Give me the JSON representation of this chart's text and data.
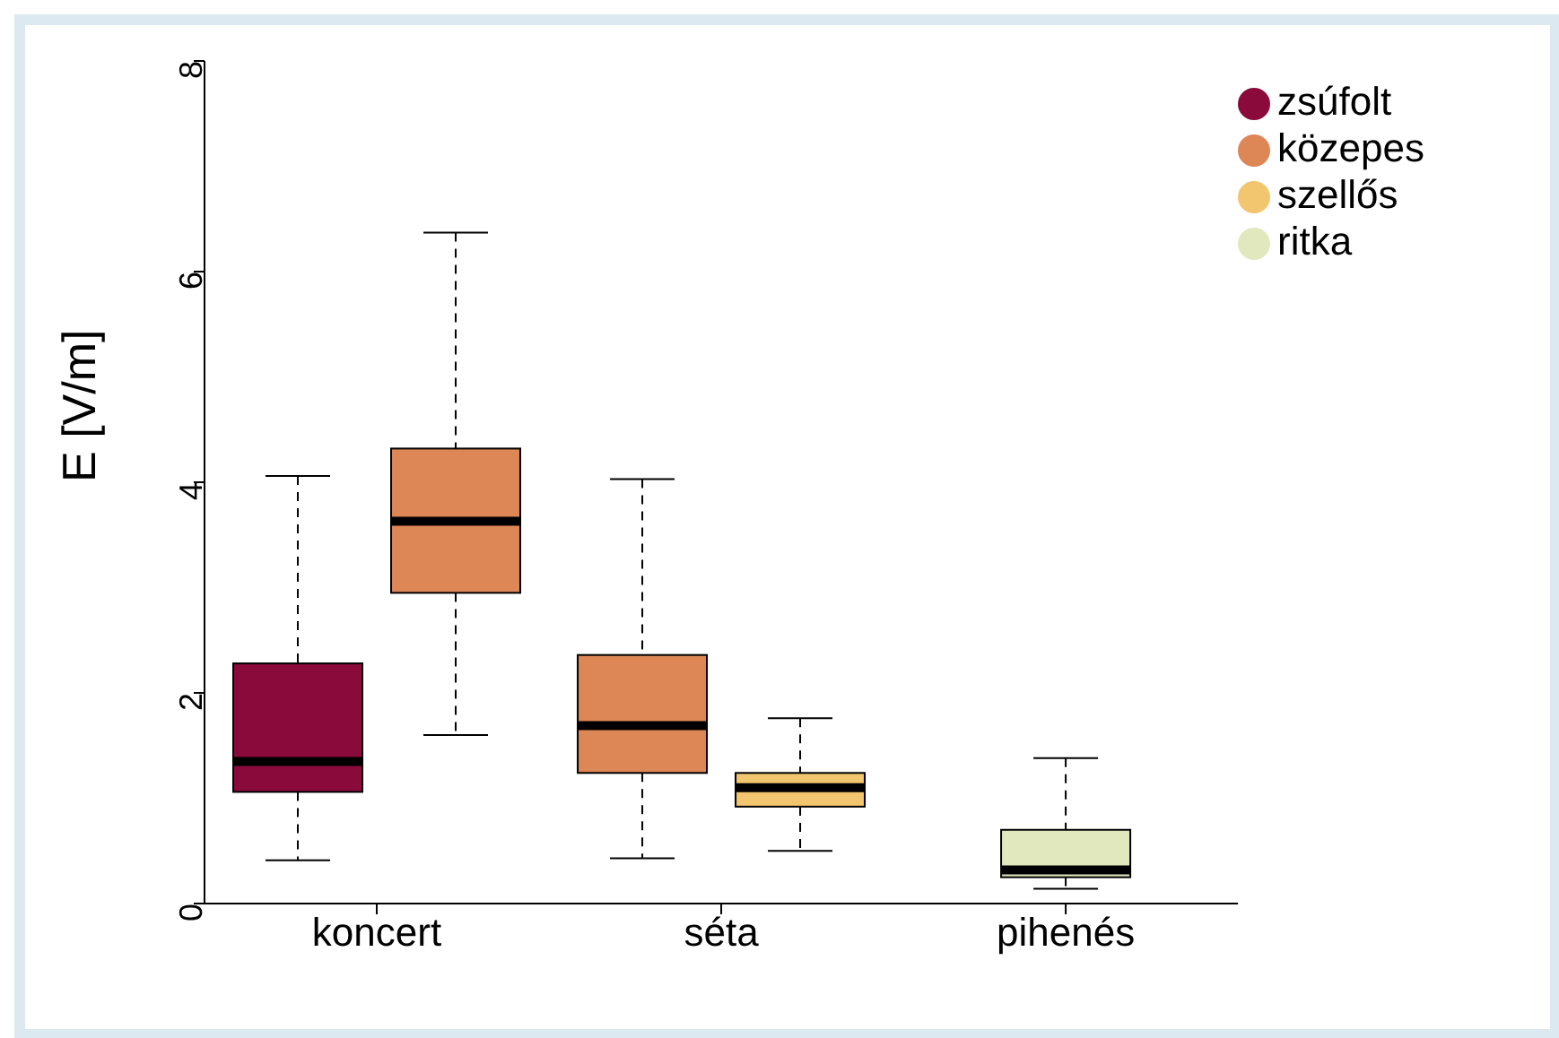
{
  "chart_data": {
    "type": "box",
    "ylabel": "E [V/m]",
    "categories": [
      "koncert",
      "séta",
      "pihenés"
    ],
    "ylim": [
      0,
      8
    ],
    "yticks": [
      0,
      2,
      4,
      6,
      8
    ],
    "legend": "top right",
    "grid": false,
    "series": [
      {
        "name": "zsúfolt",
        "color": "#8b0a3c",
        "boxes": [
          {
            "low": 0.41,
            "q1": 1.06,
            "median": 1.35,
            "q3": 2.28,
            "high": 4.06
          },
          null,
          null
        ]
      },
      {
        "name": "közepes",
        "color": "#dd8656",
        "boxes": [
          {
            "low": 1.6,
            "q1": 2.95,
            "median": 3.63,
            "q3": 4.32,
            "high": 6.37
          },
          {
            "low": 0.43,
            "q1": 1.24,
            "median": 1.69,
            "q3": 2.36,
            "high": 4.03
          },
          null
        ]
      },
      {
        "name": "szellős",
        "color": "#f2c66f",
        "boxes": [
          null,
          {
            "low": 0.5,
            "q1": 0.92,
            "median": 1.1,
            "q3": 1.24,
            "high": 1.76
          },
          null
        ]
      },
      {
        "name": "ritka",
        "color": "#e2e8bd",
        "boxes": [
          null,
          null,
          {
            "low": 0.14,
            "q1": 0.25,
            "median": 0.32,
            "q3": 0.7,
            "high": 1.38
          }
        ]
      }
    ]
  }
}
